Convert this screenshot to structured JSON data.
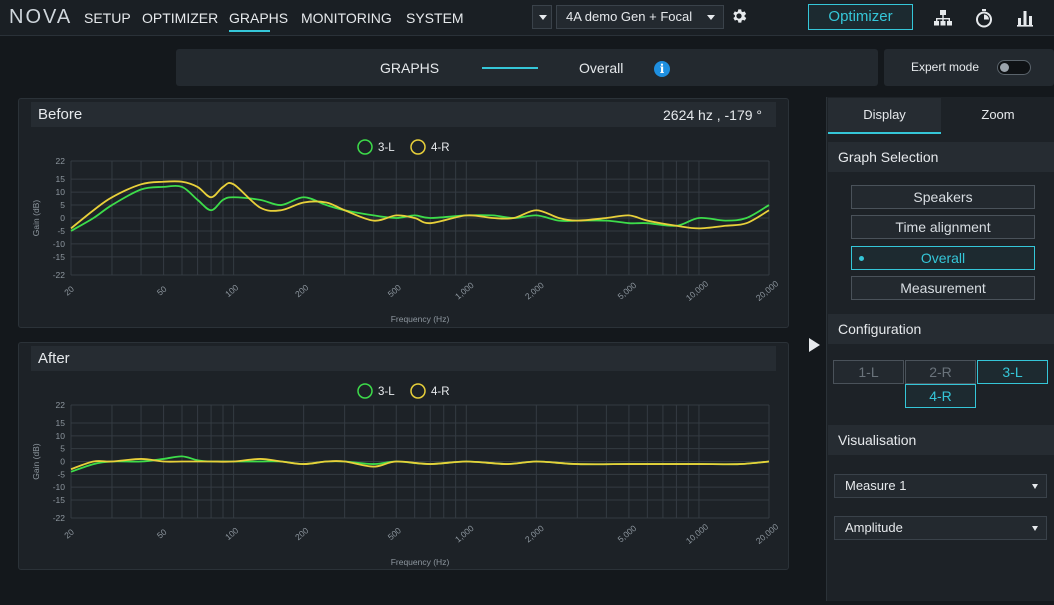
{
  "app": {
    "logo": "NOVA"
  },
  "nav": {
    "items": [
      {
        "label": "SETUP"
      },
      {
        "label": "OPTIMIZER"
      },
      {
        "label": "GRAPHS"
      },
      {
        "label": "MONITORING"
      },
      {
        "label": "SYSTEM"
      }
    ],
    "active": "GRAPHS"
  },
  "preset": {
    "selected": "4A demo Gen + Focal"
  },
  "toolbar": {
    "optimizer_label": "Optimizer"
  },
  "icons": {
    "gear": "gear-icon",
    "network": "network-icon",
    "timer": "stopwatch-icon",
    "bars": "bar-chart-icon",
    "info": "info-icon"
  },
  "subheader": {
    "left": "GRAPHS",
    "right": "Overall",
    "info_glyph": "i"
  },
  "expert_mode": {
    "label": "Expert mode",
    "enabled": false
  },
  "colors": {
    "accent": "#35c6d8",
    "series_3L": "#3ddc4a",
    "series_4R": "#e8d03a"
  },
  "graphs": {
    "before": {
      "title": "Before",
      "readout": "2624 hz , -179 °"
    },
    "after": {
      "title": "After"
    }
  },
  "chart_data": [
    {
      "type": "line",
      "title": "Before",
      "xlabel": "Frequency (Hz)",
      "ylabel": "Gain (dB)",
      "xscale": "log",
      "xlim": [
        20,
        20000
      ],
      "ylim": [
        -22,
        22
      ],
      "x_ticks": [
        20,
        50,
        100,
        200,
        500,
        1000,
        2000,
        5000,
        10000,
        20000
      ],
      "x_tick_labels": [
        "20",
        "50",
        "100",
        "200",
        "500",
        "1,000",
        "2,000",
        "5,000",
        "10,000",
        "20,000"
      ],
      "y_ticks": [
        22,
        15,
        10,
        5,
        0,
        -5,
        -10,
        -15,
        -22
      ],
      "grid": true,
      "legend": "top-center",
      "series": [
        {
          "name": "3-L",
          "color": "#3ddc4a",
          "x": [
            20,
            25,
            30,
            40,
            50,
            60,
            70,
            80,
            90,
            100,
            130,
            160,
            200,
            250,
            300,
            400,
            500,
            600,
            700,
            1000,
            1300,
            1600,
            2000,
            2500,
            3000,
            4000,
            5000,
            6000,
            8000,
            10000,
            13000,
            16000,
            20000
          ],
          "y": [
            -5,
            0,
            5,
            11,
            12,
            12,
            7,
            3,
            7,
            8,
            7,
            5,
            8,
            5,
            3,
            1,
            0,
            1,
            0,
            1,
            1,
            0,
            1,
            -1,
            -1,
            -1,
            -2,
            -2,
            -3,
            0,
            -1,
            0,
            5
          ]
        },
        {
          "name": "4-R",
          "color": "#e8d03a",
          "x": [
            20,
            25,
            30,
            40,
            50,
            60,
            70,
            80,
            90,
            100,
            130,
            160,
            200,
            250,
            300,
            400,
            500,
            600,
            700,
            1000,
            1300,
            1600,
            2000,
            2500,
            3000,
            4000,
            5000,
            6000,
            8000,
            10000,
            13000,
            16000,
            20000
          ],
          "y": [
            -4,
            3,
            8,
            13,
            14,
            14,
            12,
            8,
            12,
            13,
            4,
            3,
            6,
            6,
            3,
            -1,
            1,
            0,
            -2,
            1,
            0,
            0,
            3,
            0,
            -1,
            0,
            1,
            -1,
            -3,
            -4,
            -3,
            -2,
            3
          ]
        }
      ]
    },
    {
      "type": "line",
      "title": "After",
      "xlabel": "Frequency (Hz)",
      "ylabel": "Gain (dB)",
      "xscale": "log",
      "xlim": [
        20,
        20000
      ],
      "ylim": [
        -22,
        22
      ],
      "x_ticks": [
        20,
        50,
        100,
        200,
        500,
        1000,
        2000,
        5000,
        10000,
        20000
      ],
      "x_tick_labels": [
        "20",
        "50",
        "100",
        "200",
        "500",
        "1,000",
        "2,000",
        "5,000",
        "10,000",
        "20,000"
      ],
      "y_ticks": [
        22,
        15,
        10,
        5,
        0,
        -5,
        -10,
        -15,
        -22
      ],
      "grid": true,
      "legend": "top-center",
      "series": [
        {
          "name": "3-L",
          "color": "#3ddc4a",
          "x": [
            20,
            25,
            30,
            40,
            50,
            60,
            70,
            80,
            100,
            130,
            160,
            200,
            250,
            300,
            400,
            500,
            700,
            1000,
            1500,
            2000,
            3000,
            5000,
            7000,
            10000,
            15000,
            20000
          ],
          "y": [
            -4,
            -1,
            0,
            0,
            1,
            2,
            0.5,
            0,
            0,
            0,
            0,
            -1,
            0,
            0,
            -1,
            0,
            -1,
            0,
            -1,
            0,
            -1,
            -1,
            -1,
            -1,
            -1,
            0
          ]
        },
        {
          "name": "4-R",
          "color": "#e8d03a",
          "x": [
            20,
            25,
            30,
            40,
            50,
            60,
            70,
            80,
            100,
            130,
            160,
            200,
            250,
            300,
            400,
            500,
            700,
            1000,
            1500,
            2000,
            3000,
            5000,
            7000,
            10000,
            15000,
            20000
          ],
          "y": [
            -3,
            0,
            0,
            1,
            0,
            0,
            0,
            0,
            0,
            1,
            0,
            -1,
            0,
            0,
            -2,
            0,
            -1,
            0,
            -1,
            0,
            -1,
            -1,
            -1,
            -1,
            -1,
            0
          ]
        }
      ]
    }
  ],
  "right_panel": {
    "tabs": [
      {
        "label": "Display"
      },
      {
        "label": "Zoom"
      }
    ],
    "active_tab": "Display",
    "graph_selection": {
      "heading": "Graph Selection",
      "options": [
        {
          "label": "Speakers"
        },
        {
          "label": "Time alignment"
        },
        {
          "label": "Overall"
        },
        {
          "label": "Measurement"
        }
      ],
      "selected": "Overall"
    },
    "configuration": {
      "heading": "Configuration",
      "channels": [
        {
          "label": "1-L",
          "active": false
        },
        {
          "label": "2-R",
          "active": false
        },
        {
          "label": "3-L",
          "active": true
        },
        {
          "label": "4-R",
          "active": true
        }
      ]
    },
    "visualisation": {
      "heading": "Visualisation",
      "measure": "Measure 1",
      "mode": "Amplitude"
    }
  }
}
